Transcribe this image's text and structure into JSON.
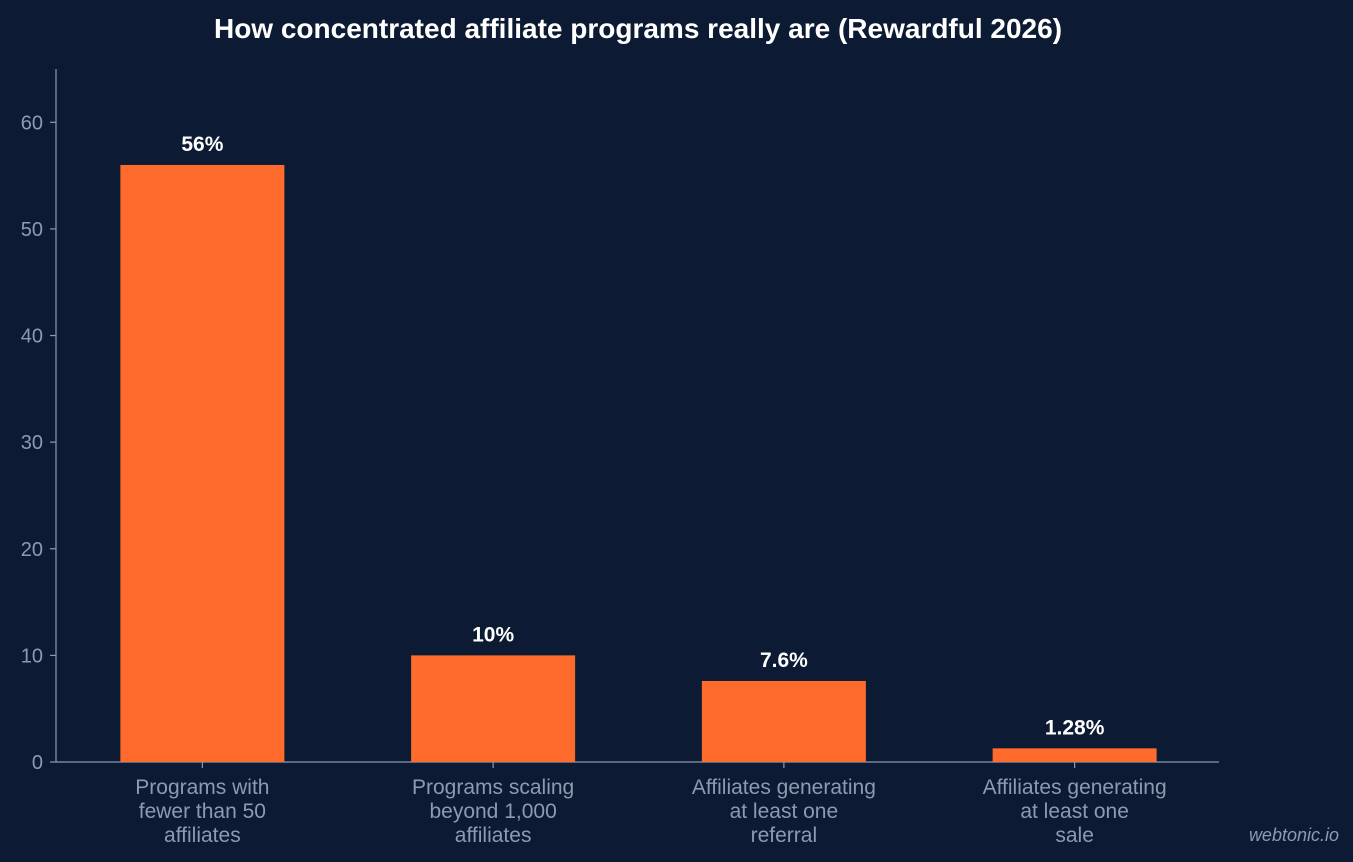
{
  "chart_data": {
    "type": "bar",
    "title": "How concentrated affiliate programs really are (Rewardful 2026)",
    "xlabel": "",
    "ylabel": "",
    "categories": [
      [
        "Programs with",
        "fewer than 50",
        "affiliates"
      ],
      [
        "Programs scaling",
        "beyond 1,000",
        "affiliates"
      ],
      [
        "Affiliates generating",
        "at least one",
        "referral"
      ],
      [
        "Affiliates generating",
        "at least one",
        "sale"
      ]
    ],
    "values": [
      56,
      10,
      7.6,
      1.28
    ],
    "data_labels": [
      "56%",
      "10%",
      "7.6%",
      "1.28%"
    ],
    "ylim": [
      0,
      65
    ],
    "yticks": [
      0,
      10,
      20,
      30,
      40,
      50,
      60
    ],
    "grid": false,
    "legend": "none",
    "colors": {
      "background": "#0c1b33",
      "bar": "#ff6b2c",
      "axis": "#8d9ab0",
      "text": "#ffffff",
      "muted_text": "#8d9ab0"
    }
  },
  "watermark": "webtonic.io"
}
